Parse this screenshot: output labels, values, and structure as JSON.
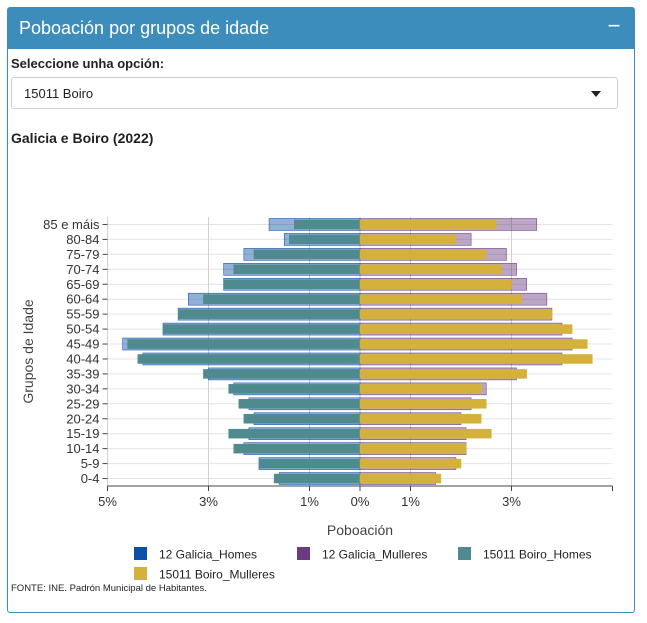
{
  "box": {
    "title": "Poboación por grupos de idade",
    "collapse_symbol": "−"
  },
  "select": {
    "label": "Seleccione unha opción:",
    "value": "15011 Boiro"
  },
  "chart_data": {
    "type": "bar",
    "orientation": "horizontal-population-pyramid",
    "title": "Galicia e Boiro (2022)",
    "xlabel": "Poboación",
    "ylabel": "Grupos de Idade",
    "x_tick_labels": [
      "5%",
      "3%",
      "1%",
      "0%",
      "1%",
      "3%"
    ],
    "x_tick_values": [
      -5,
      -3,
      -1,
      0,
      1,
      3
    ],
    "xlim": [
      -5,
      5
    ],
    "categories": [
      "0-4",
      "5-9",
      "10-14",
      "15-19",
      "20-24",
      "25-29",
      "30-34",
      "35-39",
      "40-44",
      "45-49",
      "50-54",
      "55-59",
      "60-64",
      "65-69",
      "70-74",
      "75-79",
      "80-84",
      "85 e máis"
    ],
    "series": [
      {
        "name": "12 Galicia_Homes",
        "color": "#0b4fa8",
        "side": "left",
        "values": [
          1.6,
          2.0,
          2.3,
          2.2,
          2.1,
          2.2,
          2.5,
          3.0,
          4.3,
          4.7,
          3.9,
          3.6,
          3.4,
          2.7,
          2.7,
          2.3,
          1.5,
          1.8
        ]
      },
      {
        "name": "12 Galicia_Mulleres",
        "color": "#6b3a80",
        "side": "right",
        "values": [
          1.5,
          1.9,
          2.1,
          2.1,
          2.0,
          2.2,
          2.5,
          3.1,
          4.0,
          4.2,
          4.0,
          3.8,
          3.7,
          3.3,
          3.1,
          2.9,
          2.2,
          3.5
        ]
      },
      {
        "name": "15011 Boiro_Homes",
        "color": "#4e8a8e",
        "side": "left",
        "values": [
          1.7,
          2.0,
          2.5,
          2.6,
          2.3,
          2.4,
          2.6,
          3.1,
          4.4,
          4.6,
          3.9,
          3.6,
          3.1,
          2.7,
          2.5,
          2.1,
          1.4,
          1.3
        ]
      },
      {
        "name": "15011 Boiro_Mulleres",
        "color": "#d4b13a",
        "side": "right",
        "values": [
          1.6,
          2.0,
          2.1,
          2.6,
          2.4,
          2.5,
          2.4,
          3.3,
          4.6,
          4.5,
          4.2,
          3.8,
          3.2,
          3.0,
          2.8,
          2.5,
          1.9,
          2.7
        ]
      }
    ],
    "legend_position": "bottom",
    "grid": true
  },
  "source": "FONTE: INE. Padrón Municipal de Habitantes."
}
